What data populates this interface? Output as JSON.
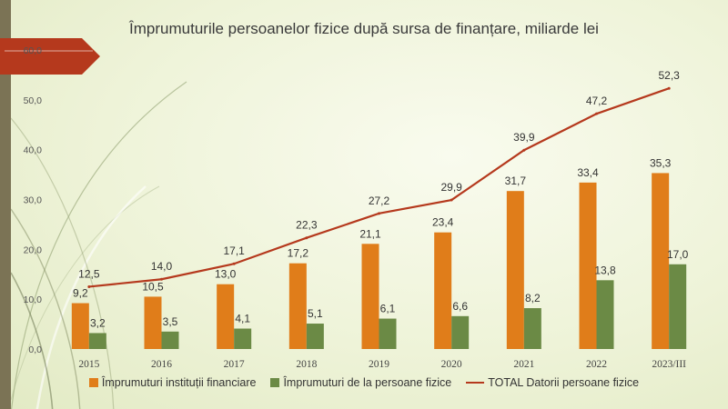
{
  "title": "Împrumuturile persoanelor fizice după sursa de finanțare, miliarde lei",
  "colors": {
    "bar1": "#e07d1a",
    "bar2": "#6b8a45",
    "line": "#b5391d",
    "banner": "#b5391d"
  },
  "chart_data": {
    "type": "bar",
    "categories": [
      "2015",
      "2016",
      "2017",
      "2018",
      "2019",
      "2020",
      "2021",
      "2022",
      "2023/III"
    ],
    "series": [
      {
        "name": "Împrumuturi instituții financiare",
        "type": "bar",
        "values": [
          9.2,
          10.5,
          13.0,
          17.2,
          21.1,
          23.4,
          31.7,
          33.4,
          35.3
        ]
      },
      {
        "name": "Împrumuturi de la persoane fizice",
        "type": "bar",
        "values": [
          3.2,
          3.5,
          4.1,
          5.1,
          6.1,
          6.6,
          8.2,
          13.8,
          17.0
        ]
      },
      {
        "name": "TOTAL Datorii persoane fizice",
        "type": "line",
        "values": [
          12.5,
          14.0,
          17.1,
          22.3,
          27.2,
          29.9,
          39.9,
          47.2,
          52.3
        ]
      }
    ],
    "y_ticks": [
      "0,0",
      "10,0",
      "20,0",
      "30,0",
      "40,0",
      "50,0",
      "60,0"
    ],
    "ylim": [
      0,
      60
    ],
    "legend_position": "bottom",
    "grid": false
  }
}
